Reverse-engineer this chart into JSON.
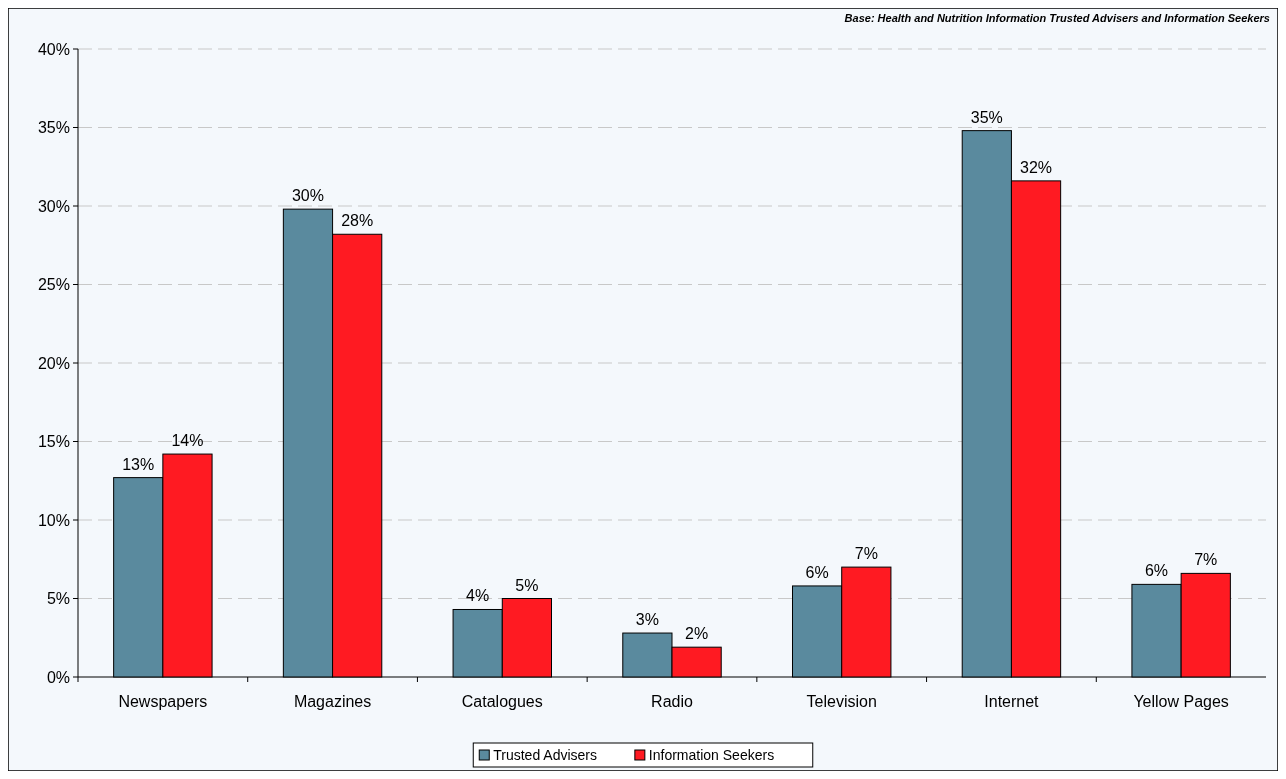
{
  "chart_data": {
    "type": "bar",
    "categories": [
      "Newspapers",
      "Magazines",
      "Catalogues",
      "Radio",
      "Television",
      "Internet",
      "Yellow Pages"
    ],
    "series": [
      {
        "name": "Trusted Advisers",
        "color": "#5a8a9e",
        "values": [
          12.7,
          29.8,
          4.3,
          2.8,
          5.8,
          34.8,
          5.9
        ],
        "value_labels": [
          "13%",
          "30%",
          "4%",
          "3%",
          "6%",
          "35%",
          "6%"
        ]
      },
      {
        "name": "Information Seekers",
        "color": "#ff1a22",
        "values": [
          14.2,
          28.2,
          5.0,
          1.9,
          7.0,
          31.6,
          6.6
        ],
        "value_labels": [
          "14%",
          "28%",
          "5%",
          "2%",
          "7%",
          "32%",
          "7%"
        ]
      }
    ],
    "ylim": [
      0,
      40
    ],
    "yticks": [
      {
        "value": 0,
        "label": "0%"
      },
      {
        "value": 5,
        "label": "5%"
      },
      {
        "value": 10,
        "label": "10%"
      },
      {
        "value": 15,
        "label": "15%"
      },
      {
        "value": 20,
        "label": "20%"
      },
      {
        "value": 25,
        "label": "25%"
      },
      {
        "value": 30,
        "label": "30%"
      },
      {
        "value": 35,
        "label": "35%"
      },
      {
        "value": 40,
        "label": "40%"
      }
    ],
    "grid": "y",
    "legend": "bottom",
    "annotations": [
      "Base: Health and Nutrition Information Trusted Advisers and Information Seekers"
    ]
  }
}
